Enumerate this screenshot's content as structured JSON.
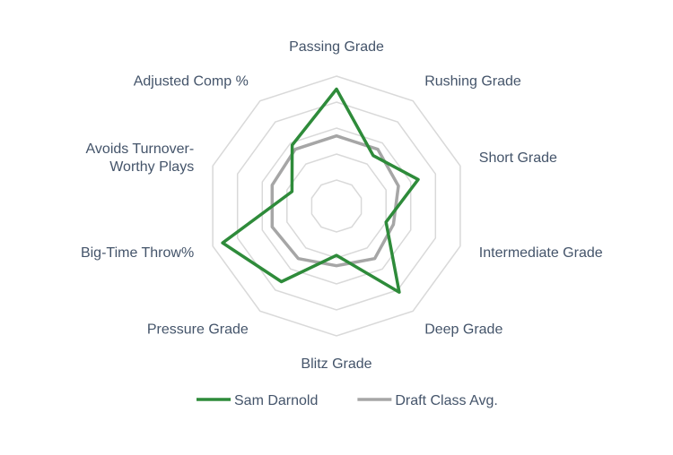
{
  "chart_data": {
    "type": "radar",
    "categories": [
      "Passing Grade",
      "Rushing Grade",
      "Short Grade",
      "Intermediate Grade",
      "Deep Grade",
      "Blitz Grade",
      "Pressure Grade",
      "Big-Time Throw%",
      "Avoids Turnover-Worthy Plays",
      "Adjusted Comp %"
    ],
    "category_lines": [
      [
        "Passing Grade"
      ],
      [
        "Rushing Grade"
      ],
      [
        "Short Grade"
      ],
      [
        "Intermediate Grade"
      ],
      [
        "Deep Grade"
      ],
      [
        "Blitz Grade"
      ],
      [
        "Pressure Grade"
      ],
      [
        "Big-Time Throw%"
      ],
      [
        "Avoids Turnover-",
        "Worthy Plays"
      ],
      [
        "Adjusted Comp %"
      ]
    ],
    "rmax": 5,
    "rings": 5,
    "grid": true,
    "legend_position": "bottom",
    "series": [
      {
        "name": "Sam Darnold",
        "color": "#2e8b3a",
        "values": [
          4.5,
          2.4,
          3.3,
          2.0,
          4.1,
          1.9,
          3.6,
          4.6,
          1.8,
          2.9
        ]
      },
      {
        "name": "Draft Class Avg.",
        "color": "#a6a6a6",
        "values": [
          2.7,
          2.7,
          2.5,
          2.3,
          2.5,
          2.3,
          2.5,
          2.6,
          2.6,
          2.7
        ]
      }
    ]
  }
}
